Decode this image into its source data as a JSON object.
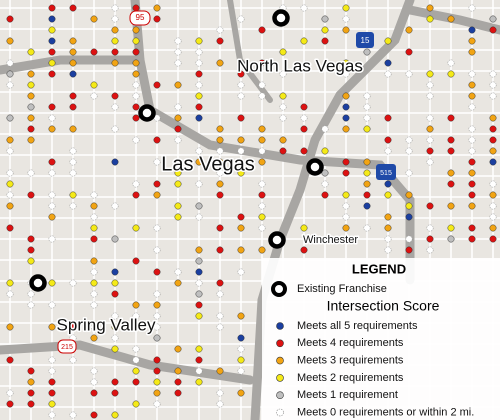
{
  "map": {
    "places": {
      "north_las_vegas": "North Las Vegas",
      "las_vegas": "Las Vegas",
      "spring_valley": "Spring Valley",
      "winchester": "Winchester"
    },
    "shields": {
      "us95": "95",
      "i15": "15",
      "i515": "515",
      "sr215": "215"
    },
    "legend": {
      "title": "LEGEND",
      "franchise": "Existing Franchise",
      "score_title": "Intersection Score",
      "items": [
        "Meets all 5 requirements",
        "Meets 4 requirements",
        "Meets 3 requirements",
        "Meets 2 requirements",
        "Meets 1 requirement",
        "Meets 0 requirements or within 2 mi."
      ]
    }
  }
}
